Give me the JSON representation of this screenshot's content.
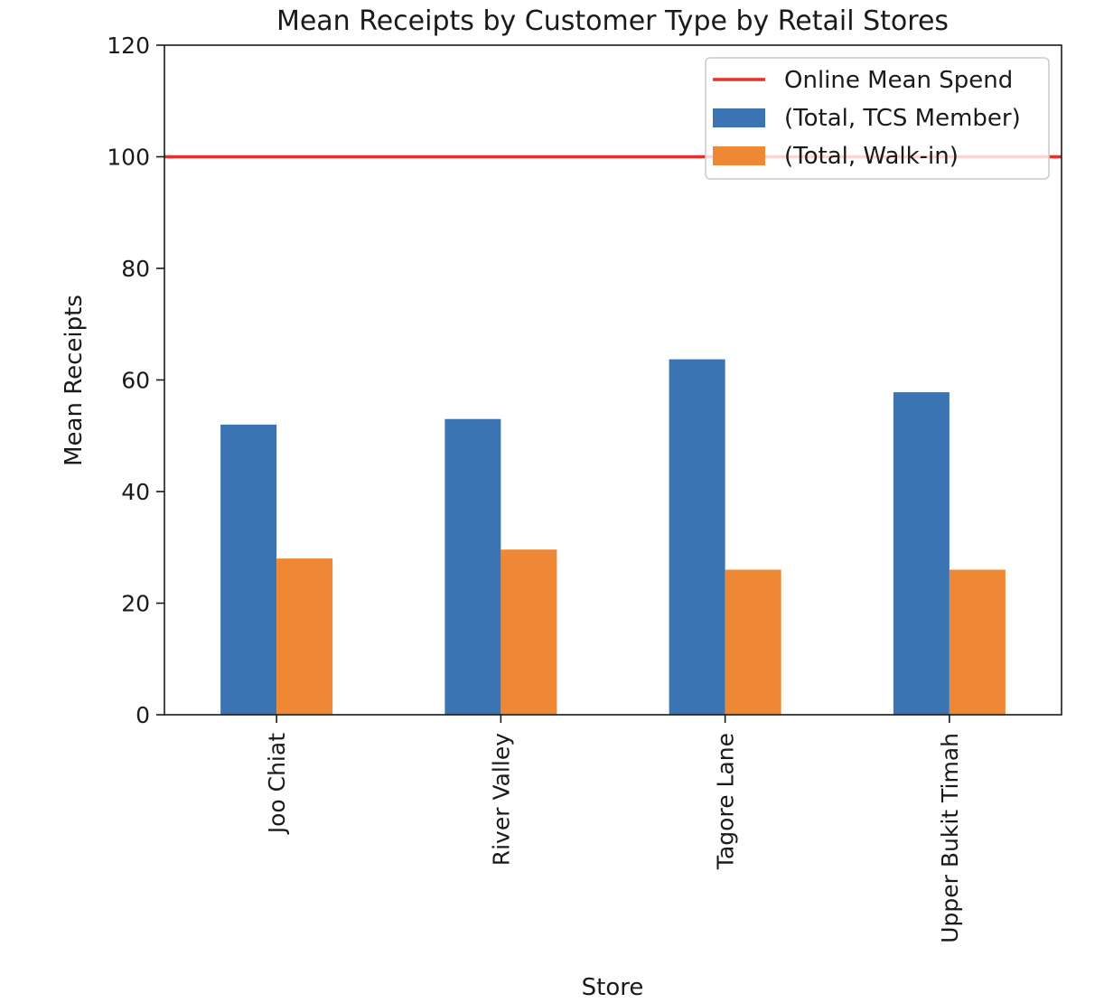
{
  "chart_data": {
    "type": "bar",
    "title": "Mean Receipts by Customer Type by Retail Stores",
    "xlabel": "Store",
    "ylabel": "Mean Receipts",
    "ylim": [
      0,
      120
    ],
    "yticks": [
      0,
      20,
      40,
      60,
      80,
      100,
      120
    ],
    "categories": [
      "Joo Chiat",
      "River Valley",
      "Tagore Lane",
      "Upper Bukit Timah"
    ],
    "series": [
      {
        "name": "(Total, TCS Member)",
        "color": "#3a74b2",
        "values": [
          52.0,
          53.0,
          63.7,
          57.8
        ]
      },
      {
        "name": "(Total, Walk-in)",
        "color": "#ee8834",
        "values": [
          28.0,
          29.6,
          26.0,
          26.0
        ]
      }
    ],
    "reference_lines": [
      {
        "name": "Online Mean Spend",
        "value": 100,
        "color": "#e8302a"
      }
    ],
    "grid": false,
    "legend_position": "upper right",
    "xtick_rotation": "vertical"
  }
}
